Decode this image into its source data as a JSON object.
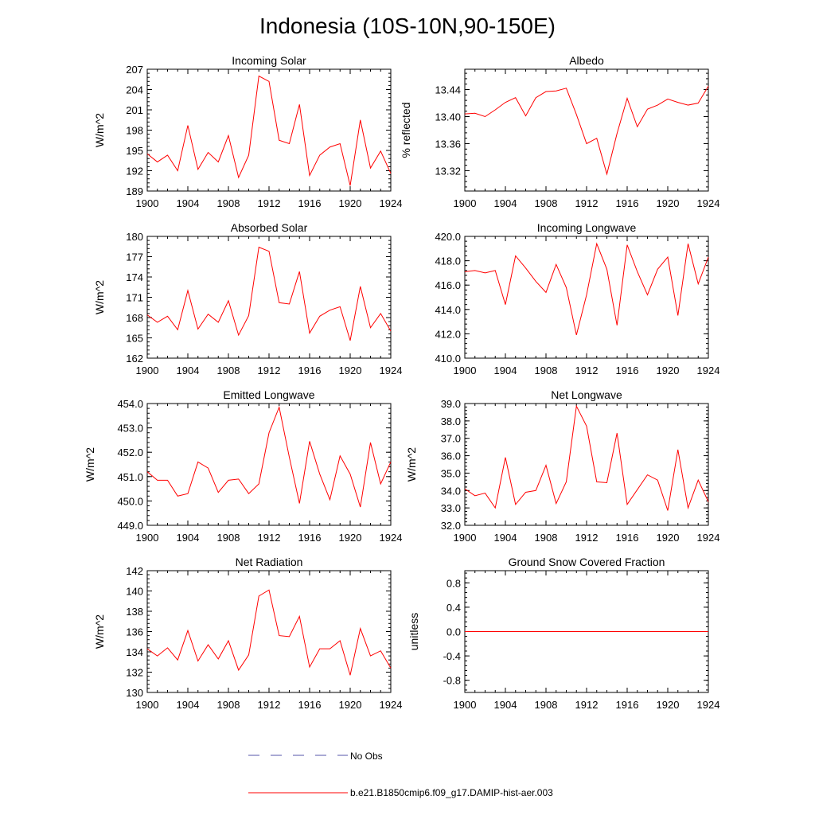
{
  "page_title": "Indonesia (10S-10N,90-150E)",
  "colors": {
    "model": "#ff0000",
    "obs": "#5555aa",
    "axis": "#000000"
  },
  "legend": {
    "obs_label": "No Obs",
    "model_label": "b.e21.B1850cmip6.f09_g17.DAMIP-hist-aer.003"
  },
  "chart_data": [
    {
      "type": "line",
      "title": "Incoming Solar",
      "ylabel": "W/m^2",
      "xlim": [
        1900,
        1924
      ],
      "ylim": [
        189,
        207
      ],
      "yticks": [
        189,
        192,
        195,
        198,
        201,
        204,
        207
      ],
      "ytick_labels": [
        "189",
        "192",
        "195",
        "198",
        "201",
        "204",
        "207"
      ],
      "xticks": [
        1900,
        1904,
        1908,
        1912,
        1916,
        1920,
        1924
      ],
      "xtick_labels": [
        "1900",
        "1904",
        "1908",
        "1912",
        "1916",
        "1920",
        "1924"
      ],
      "series": [
        {
          "x": [
            1900,
            1901,
            1902,
            1903,
            1904,
            1905,
            1906,
            1907,
            1908,
            1909,
            1910,
            1911,
            1912,
            1913,
            1914,
            1915,
            1916,
            1917,
            1918,
            1919,
            1920,
            1921,
            1922,
            1923,
            1924
          ],
          "values": [
            194.5,
            193.3,
            194.3,
            192.0,
            198.7,
            192.2,
            194.7,
            193.3,
            197.2,
            191.0,
            194.3,
            206.0,
            205.2,
            196.5,
            196.0,
            201.8,
            191.3,
            194.3,
            195.5,
            196.0,
            189.8,
            199.5,
            192.4,
            194.9,
            191.6
          ]
        }
      ]
    },
    {
      "type": "line",
      "title": "Albedo",
      "ylabel": "% reflected",
      "xlim": [
        1900,
        1924
      ],
      "ylim": [
        13.29,
        13.47
      ],
      "yticks": [
        13.32,
        13.36,
        13.4,
        13.44
      ],
      "ytick_labels": [
        "13.32",
        "13.36",
        "13.40",
        "13.44"
      ],
      "xticks": [
        1900,
        1904,
        1908,
        1912,
        1916,
        1920,
        1924
      ],
      "xtick_labels": [
        "1900",
        "1904",
        "1908",
        "1912",
        "1916",
        "1920",
        "1924"
      ],
      "series": [
        {
          "x": [
            1900,
            1901,
            1902,
            1903,
            1904,
            1905,
            1906,
            1907,
            1908,
            1909,
            1910,
            1911,
            1912,
            1913,
            1914,
            1915,
            1916,
            1917,
            1918,
            1919,
            1920,
            1921,
            1922,
            1923,
            1924
          ],
          "values": [
            13.404,
            13.405,
            13.4,
            13.41,
            13.421,
            13.428,
            13.401,
            13.428,
            13.437,
            13.438,
            13.442,
            13.403,
            13.36,
            13.368,
            13.315,
            13.375,
            13.427,
            13.385,
            13.411,
            13.417,
            13.426,
            13.421,
            13.417,
            13.42,
            13.445
          ]
        }
      ]
    },
    {
      "type": "line",
      "title": "Absorbed Solar",
      "ylabel": "W/m^2",
      "xlim": [
        1900,
        1924
      ],
      "ylim": [
        162,
        180
      ],
      "yticks": [
        162,
        165,
        168,
        171,
        174,
        177,
        180
      ],
      "ytick_labels": [
        "162",
        "165",
        "168",
        "171",
        "174",
        "177",
        "180"
      ],
      "xticks": [
        1900,
        1904,
        1908,
        1912,
        1916,
        1920,
        1924
      ],
      "xtick_labels": [
        "1900",
        "1904",
        "1908",
        "1912",
        "1916",
        "1920",
        "1924"
      ],
      "series": [
        {
          "x": [
            1900,
            1901,
            1902,
            1903,
            1904,
            1905,
            1906,
            1907,
            1908,
            1909,
            1910,
            1911,
            1912,
            1913,
            1914,
            1915,
            1916,
            1917,
            1918,
            1919,
            1920,
            1921,
            1922,
            1923,
            1924
          ],
          "values": [
            168.4,
            167.3,
            168.2,
            166.2,
            172.0,
            166.3,
            168.5,
            167.3,
            170.5,
            165.4,
            168.3,
            178.4,
            177.8,
            170.2,
            170.0,
            174.8,
            165.7,
            168.2,
            169.1,
            169.6,
            164.6,
            172.6,
            166.5,
            168.6,
            166.0
          ]
        }
      ]
    },
    {
      "type": "line",
      "title": "Incoming Longwave",
      "ylabel": "",
      "xlim": [
        1900,
        1924
      ],
      "ylim": [
        410.0,
        420.0
      ],
      "yticks": [
        410.0,
        412.0,
        414.0,
        416.0,
        418.0,
        420.0
      ],
      "ytick_labels": [
        "410.0",
        "412.0",
        "414.0",
        "416.0",
        "418.0",
        "420.0"
      ],
      "xticks": [
        1900,
        1904,
        1908,
        1912,
        1916,
        1920,
        1924
      ],
      "xtick_labels": [
        "1900",
        "1904",
        "1908",
        "1912",
        "1916",
        "1920",
        "1924"
      ],
      "series": [
        {
          "x": [
            1900,
            1901,
            1902,
            1903,
            1904,
            1905,
            1906,
            1907,
            1908,
            1909,
            1910,
            1911,
            1912,
            1913,
            1914,
            1915,
            1916,
            1917,
            1918,
            1919,
            1920,
            1921,
            1922,
            1923,
            1924
          ],
          "values": [
            417.1,
            417.2,
            417.0,
            417.2,
            414.4,
            418.4,
            417.4,
            416.3,
            415.4,
            417.7,
            415.8,
            411.9,
            415.2,
            419.4,
            417.3,
            412.7,
            419.3,
            417.1,
            415.2,
            417.3,
            418.3,
            413.5,
            419.4,
            416.1,
            418.3
          ]
        }
      ]
    },
    {
      "type": "line",
      "title": "Emitted Longwave",
      "ylabel": "W/m^2",
      "xlim": [
        1900,
        1924
      ],
      "ylim": [
        449.0,
        454.0
      ],
      "yticks": [
        449.0,
        450.0,
        451.0,
        452.0,
        453.0,
        454.0
      ],
      "ytick_labels": [
        "449.0",
        "450.0",
        "451.0",
        "452.0",
        "453.0",
        "454.0"
      ],
      "xticks": [
        1900,
        1904,
        1908,
        1912,
        1916,
        1920,
        1924
      ],
      "xtick_labels": [
        "1900",
        "1904",
        "1908",
        "1912",
        "1916",
        "1920",
        "1924"
      ],
      "series": [
        {
          "x": [
            1900,
            1901,
            1902,
            1903,
            1904,
            1905,
            1906,
            1907,
            1908,
            1909,
            1910,
            1911,
            1912,
            1913,
            1914,
            1915,
            1916,
            1917,
            1918,
            1919,
            1920,
            1921,
            1922,
            1923,
            1924
          ],
          "values": [
            451.2,
            450.85,
            450.85,
            450.2,
            450.3,
            451.6,
            451.35,
            450.35,
            450.85,
            450.9,
            450.3,
            450.7,
            452.8,
            453.85,
            451.8,
            449.9,
            452.45,
            451.1,
            450.05,
            451.85,
            451.1,
            449.75,
            452.4,
            450.7,
            451.6
          ]
        }
      ]
    },
    {
      "type": "line",
      "title": "Net Longwave",
      "ylabel": "W/m^2",
      "xlim": [
        1900,
        1924
      ],
      "ylim": [
        32.0,
        39.0
      ],
      "yticks": [
        32.0,
        33.0,
        34.0,
        35.0,
        36.0,
        37.0,
        38.0,
        39.0
      ],
      "ytick_labels": [
        "32.0",
        "33.0",
        "34.0",
        "35.0",
        "36.0",
        "37.0",
        "38.0",
        "39.0"
      ],
      "xticks": [
        1900,
        1904,
        1908,
        1912,
        1916,
        1920,
        1924
      ],
      "xtick_labels": [
        "1900",
        "1904",
        "1908",
        "1912",
        "1916",
        "1920",
        "1924"
      ],
      "series": [
        {
          "x": [
            1900,
            1901,
            1902,
            1903,
            1904,
            1905,
            1906,
            1907,
            1908,
            1909,
            1910,
            1911,
            1912,
            1913,
            1914,
            1915,
            1916,
            1917,
            1918,
            1919,
            1920,
            1921,
            1922,
            1923,
            1924
          ],
          "values": [
            34.1,
            33.7,
            33.85,
            33.0,
            35.9,
            33.2,
            33.9,
            34.0,
            35.45,
            33.25,
            34.5,
            38.85,
            37.7,
            34.5,
            34.45,
            37.3,
            33.2,
            34.05,
            34.9,
            34.6,
            32.85,
            36.35,
            33.0,
            34.6,
            33.35
          ]
        }
      ]
    },
    {
      "type": "line",
      "title": "Net Radiation",
      "ylabel": "W/m^2",
      "xlim": [
        1900,
        1924
      ],
      "ylim": [
        130,
        142
      ],
      "yticks": [
        130,
        132,
        134,
        136,
        138,
        140,
        142
      ],
      "ytick_labels": [
        "130",
        "132",
        "134",
        "136",
        "138",
        "140",
        "142"
      ],
      "xticks": [
        1900,
        1904,
        1908,
        1912,
        1916,
        1920,
        1924
      ],
      "xtick_labels": [
        "1900",
        "1904",
        "1908",
        "1912",
        "1916",
        "1920",
        "1924"
      ],
      "series": [
        {
          "x": [
            1900,
            1901,
            1902,
            1903,
            1904,
            1905,
            1906,
            1907,
            1908,
            1909,
            1910,
            1911,
            1912,
            1913,
            1914,
            1915,
            1916,
            1917,
            1918,
            1919,
            1920,
            1921,
            1922,
            1923,
            1924
          ],
          "values": [
            134.3,
            133.6,
            134.4,
            133.2,
            136.1,
            133.1,
            134.7,
            133.3,
            135.1,
            132.2,
            133.7,
            139.5,
            140.1,
            135.6,
            135.5,
            137.5,
            132.5,
            134.3,
            134.3,
            135.1,
            131.7,
            136.3,
            133.6,
            134.1,
            132.4
          ]
        }
      ]
    },
    {
      "type": "line",
      "title": "Ground Snow Covered Fraction",
      "ylabel": "unitless",
      "xlim": [
        1900,
        1924
      ],
      "ylim": [
        -1.0,
        1.0
      ],
      "yticks": [
        -0.8,
        -0.4,
        0.0,
        0.4,
        0.8
      ],
      "ytick_labels": [
        "-0.8",
        "-0.4",
        "0.0",
        "0.4",
        "0.8"
      ],
      "xticks": [
        1900,
        1904,
        1908,
        1912,
        1916,
        1920,
        1924
      ],
      "xtick_labels": [
        "1900",
        "1904",
        "1908",
        "1912",
        "1916",
        "1920",
        "1924"
      ],
      "series": [
        {
          "x": [
            1900,
            1901,
            1902,
            1903,
            1904,
            1905,
            1906,
            1907,
            1908,
            1909,
            1910,
            1911,
            1912,
            1913,
            1914,
            1915,
            1916,
            1917,
            1918,
            1919,
            1920,
            1921,
            1922,
            1923,
            1924
          ],
          "values": [
            0,
            0,
            0,
            0,
            0,
            0,
            0,
            0,
            0,
            0,
            0,
            0,
            0,
            0,
            0,
            0,
            0,
            0,
            0,
            0,
            0,
            0,
            0,
            0,
            0
          ]
        }
      ]
    }
  ]
}
